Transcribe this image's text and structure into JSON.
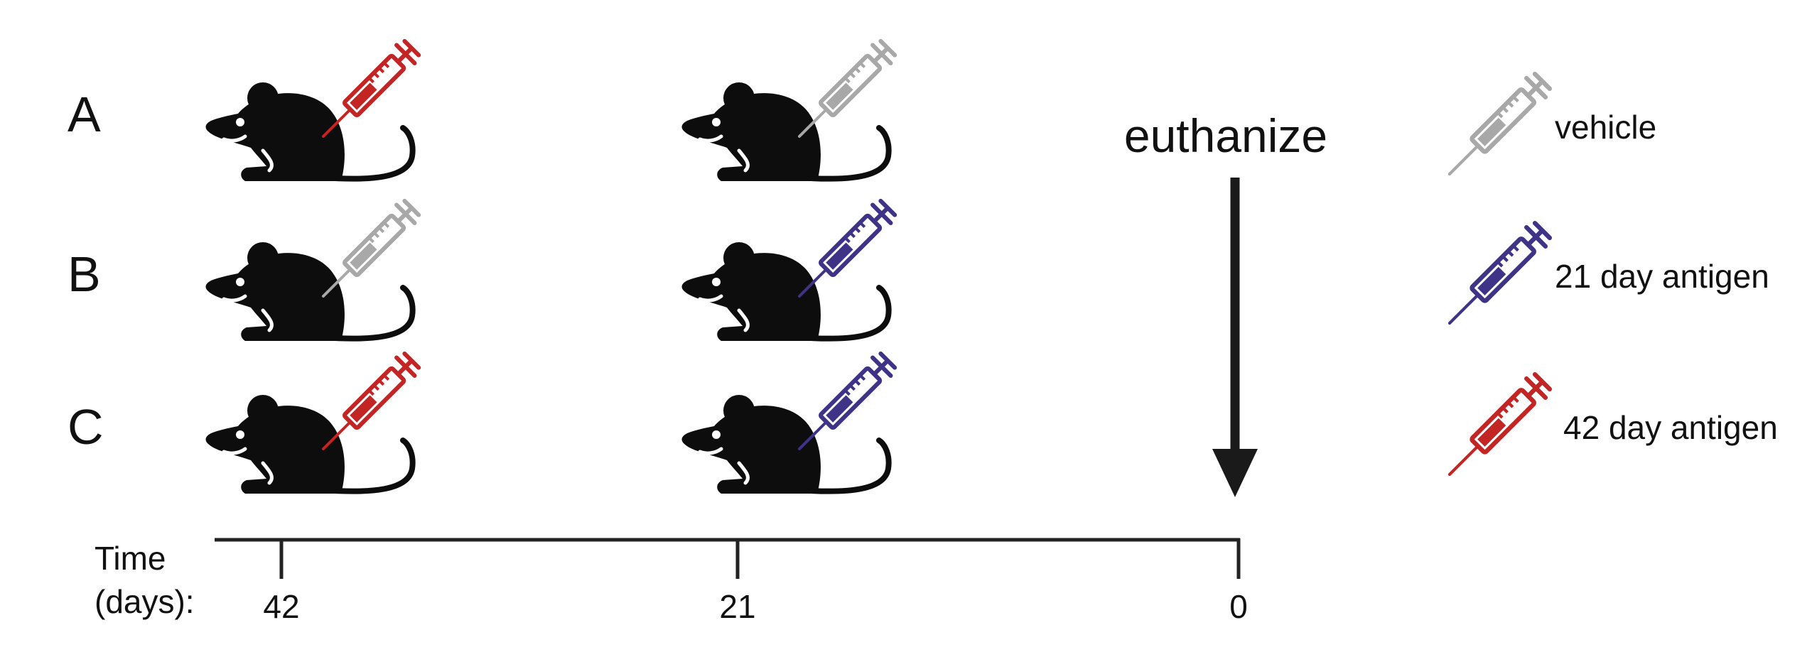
{
  "groups": [
    {
      "label": "A",
      "injections": [
        "red",
        "gray"
      ]
    },
    {
      "label": "B",
      "injections": [
        "gray",
        "purple"
      ]
    },
    {
      "label": "C",
      "injections": [
        "red",
        "purple"
      ]
    }
  ],
  "timeline": {
    "axis_label_line1": "Time",
    "axis_label_line2": "(days):",
    "ticks": [
      "42",
      "21",
      "0"
    ]
  },
  "euthanize_label": "euthanize",
  "legend": [
    {
      "color_key": "gray",
      "label": "vehicle"
    },
    {
      "color_key": "purple",
      "label": "21 day antigen"
    },
    {
      "color_key": "red",
      "label": "42 day antigen"
    }
  ],
  "colors": {
    "gray": "#a8a8a8",
    "purple": "#3f3387",
    "red": "#c32525",
    "mouse": "#0d0d0d",
    "line": "#222222"
  },
  "icons": {
    "mouse": "mouse-icon",
    "syringe": "syringe-icon",
    "arrow": "down-arrow-icon"
  }
}
